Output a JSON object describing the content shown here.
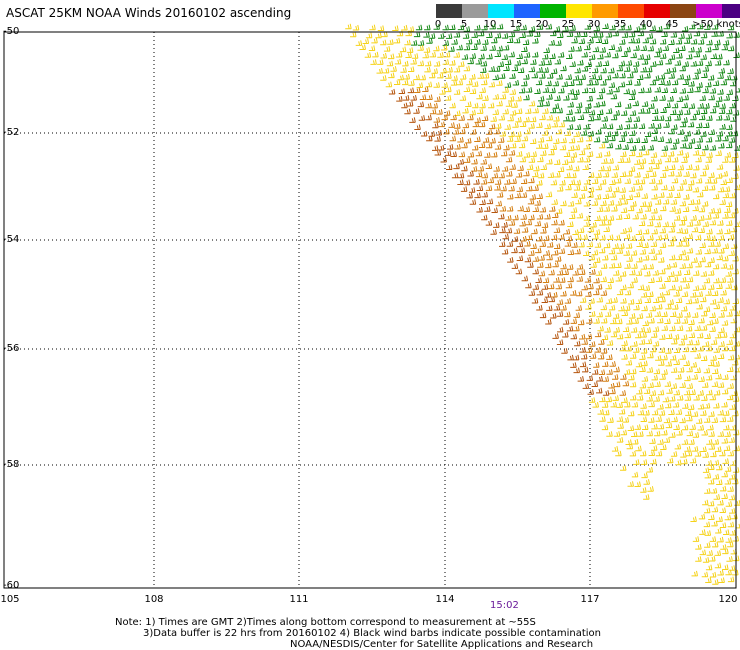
{
  "title": "ASCAT 25KM NOAA Winds 20160102 ascending",
  "legend": {
    "items": [
      {
        "label": "0",
        "color": "#3a3a3a"
      },
      {
        "label": "5",
        "color": "#9a9a9a"
      },
      {
        "label": "10",
        "color": "#00e5ff"
      },
      {
        "label": "15",
        "color": "#1e64ff"
      },
      {
        "label": "20",
        "color": "#00b400"
      },
      {
        "label": "25",
        "color": "#ffe600"
      },
      {
        "label": "30",
        "color": "#ff9a00"
      },
      {
        "label": "35",
        "color": "#ff4a00"
      },
      {
        "label": "40",
        "color": "#e60000"
      },
      {
        "label": "45",
        "color": "#8b4513"
      },
      {
        "label": ">50 knots",
        "color": "#cc00cc"
      },
      {
        "label": "",
        "color": "#4b0082"
      }
    ]
  },
  "axes": {
    "y_labels": [
      "-50",
      "-52",
      "-54",
      "-56",
      "-58",
      "-60"
    ],
    "x_labels": [
      "105",
      "108",
      "111",
      "114",
      "117",
      "120"
    ]
  },
  "time_label": "15:02",
  "notes": [
    "Note: 1) Times are GMT 2)Times along bottom correspond to measurement at ~55S",
    "3)Data buffer is 22 hrs from 20160102 4) Black wind barbs indicate possible contamination",
    "NOAA/NESDIS/Center for Satellite Applications and Research"
  ],
  "wind_colors": {
    "green": "#178a17",
    "yellow": "#f5d21a",
    "orange": "#d47f12",
    "brown": "#b5560f"
  }
}
